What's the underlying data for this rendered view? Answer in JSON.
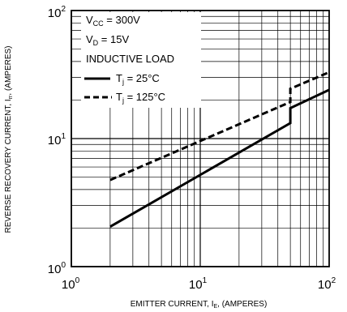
{
  "chart_data": {
    "type": "line",
    "x_scale": "log",
    "y_scale": "log",
    "xlim": [
      1,
      100
    ],
    "ylim": [
      1,
      100
    ],
    "grid": true,
    "xlabel": {
      "main": "EMITTER CURRENT, I",
      "sub": "E",
      "tail": ", (AMPERES)"
    },
    "ylabel": {
      "main": "REVERSE RECOVERY CURRENT, I",
      "sub": "rr",
      "tail": ", (AMPERES)"
    },
    "x_ticks": [
      {
        "value": 1,
        "base": "10",
        "exp": "0"
      },
      {
        "value": 10,
        "base": "10",
        "exp": "1"
      },
      {
        "value": 100,
        "base": "10",
        "exp": "2"
      }
    ],
    "y_ticks": [
      {
        "value": 1,
        "base": "10",
        "exp": "0"
      },
      {
        "value": 10,
        "base": "10",
        "exp": "1"
      },
      {
        "value": 100,
        "base": "10",
        "exp": "2"
      }
    ],
    "conditions": [
      {
        "main": "V",
        "sub": "CC",
        "tail": " = 300V"
      },
      {
        "main": "V",
        "sub": "D",
        "tail": " = 15V"
      },
      {
        "main": "INDUCTIVE LOAD",
        "sub": "",
        "tail": ""
      }
    ],
    "series": [
      {
        "name": {
          "main": "T",
          "sub": "j",
          "tail": " = 25°C"
        },
        "style": "solid",
        "points": [
          [
            2,
            2.05
          ],
          [
            50,
            13.2
          ],
          [
            50,
            17.3
          ],
          [
            100,
            24.0
          ]
        ]
      },
      {
        "name": {
          "main": "T",
          "sub": "j",
          "tail": " = 125°C"
        },
        "style": "dashed",
        "points": [
          [
            2,
            4.75
          ],
          [
            50,
            19.3
          ],
          [
            50,
            24.5
          ],
          [
            100,
            33.0
          ]
        ]
      }
    ]
  }
}
